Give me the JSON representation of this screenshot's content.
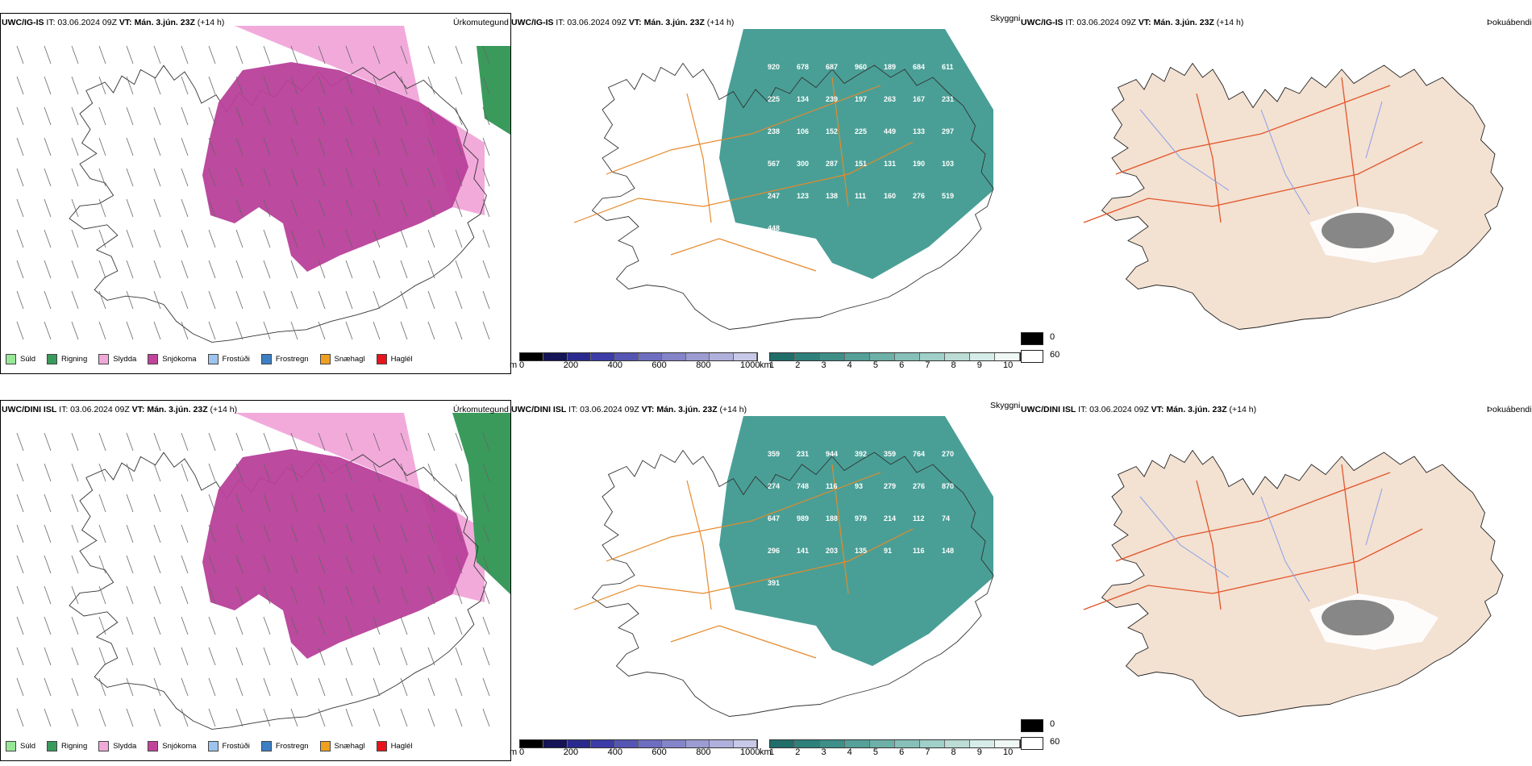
{
  "rows": [
    {
      "model": "UWC/IG-IS",
      "it": "IT: 03.06.2024 09Z",
      "vt_label": "VT:",
      "vt": "Mán. 3.jún. 23Z",
      "lead": "(+14 h)",
      "peak_labels": [
        {
          "t": "920"
        },
        {
          "t": "678"
        },
        {
          "t": "687"
        },
        {
          "t": "960"
        },
        {
          "t": "189"
        },
        {
          "t": "684"
        },
        {
          "t": "611"
        },
        {
          "t": "225"
        },
        {
          "t": "134"
        },
        {
          "t": "239"
        },
        {
          "t": "197"
        },
        {
          "t": "263"
        },
        {
          "t": "167"
        },
        {
          "t": "231"
        },
        {
          "t": "238"
        },
        {
          "t": "106"
        },
        {
          "t": "152"
        },
        {
          "t": "225"
        },
        {
          "t": "449"
        },
        {
          "t": "133"
        },
        {
          "t": "297"
        },
        {
          "t": "567"
        },
        {
          "t": "300"
        },
        {
          "t": "287"
        },
        {
          "t": "151"
        },
        {
          "t": "131"
        },
        {
          "t": "190"
        },
        {
          "t": "103"
        },
        {
          "t": "247"
        },
        {
          "t": "123"
        },
        {
          "t": "138"
        },
        {
          "t": "111"
        },
        {
          "t": "160"
        },
        {
          "t": "276"
        },
        {
          "t": "519"
        },
        {
          "t": "448"
        }
      ]
    },
    {
      "model": "UWC/DINI ISL",
      "it": "IT: 03.06.2024 09Z",
      "vt_label": "VT:",
      "vt": "Mán. 3.jún. 23Z",
      "lead": "(+14 h)",
      "peak_labels": [
        {
          "t": "359"
        },
        {
          "t": "231"
        },
        {
          "t": "944"
        },
        {
          "t": "392"
        },
        {
          "t": "359"
        },
        {
          "t": "764"
        },
        {
          "t": "270"
        },
        {
          "t": "274"
        },
        {
          "t": "748"
        },
        {
          "t": "116"
        },
        {
          "t": "93"
        },
        {
          "t": "279"
        },
        {
          "t": "276"
        },
        {
          "t": "870"
        },
        {
          "t": "647"
        },
        {
          "t": "989"
        },
        {
          "t": "188"
        },
        {
          "t": "979"
        },
        {
          "t": "214"
        },
        {
          "t": "112"
        },
        {
          "t": "74"
        },
        {
          "t": "296"
        },
        {
          "t": "141"
        },
        {
          "t": "203"
        },
        {
          "t": "135"
        },
        {
          "t": "91"
        },
        {
          "t": "116"
        },
        {
          "t": "148"
        },
        {
          "t": "391"
        }
      ]
    }
  ],
  "panel_titles": {
    "precip_type": "Úrkomutegund",
    "visibility": "Skyggni",
    "fog": "Þokuábendi"
  },
  "precip_legend": [
    {
      "label": "Súld",
      "color": "#98e698"
    },
    {
      "label": "Rigning",
      "color": "#3a9a5c"
    },
    {
      "label": "Slydda",
      "color": "#f0a8d8"
    },
    {
      "label": "Snjókoma",
      "color": "#c0449a"
    },
    {
      "label": "Frostúði",
      "color": "#9cc4ee"
    },
    {
      "label": "Frostregn",
      "color": "#3d7fc4"
    },
    {
      "label": "Snæhagl",
      "color": "#f0a020"
    },
    {
      "label": "Haglél",
      "color": "#e8141c"
    }
  ],
  "height_bar": {
    "unit": "m",
    "ticks": [
      "0",
      "200",
      "400",
      "600",
      "800",
      "1000"
    ],
    "colors": [
      "#000000",
      "#141456",
      "#2a2a8e",
      "#3c3ca8",
      "#5555b4",
      "#6e6ec0",
      "#8484c8",
      "#9c9cd2",
      "#b0b0dc",
      "#c8c8e8"
    ]
  },
  "vis_bar": {
    "unit": "km",
    "ticks": [
      "1",
      "2",
      "3",
      "4",
      "5",
      "6",
      "7",
      "8",
      "9",
      "10"
    ],
    "colors": [
      "#1f6e6a",
      "#2e807a",
      "#3d8f88",
      "#55a098",
      "#6cb0a8",
      "#86c0b8",
      "#a0d0c8",
      "#bcdcd6",
      "#d6ece8",
      "#f0f8f6"
    ]
  },
  "fog_legend": [
    {
      "label": "0",
      "color": "#000000"
    },
    {
      "label": "60",
      "color": "#ffffff"
    }
  ],
  "colors": {
    "snow": "#b8409a",
    "sleet": "#f2aadb",
    "rain": "#3a9a5c",
    "vis_fill": "#3f9a90",
    "fog_land": "#f3e1d2",
    "roads": "#e58a2c",
    "fog_roads": "#e2562a",
    "rivers": "#8aa0e8"
  }
}
